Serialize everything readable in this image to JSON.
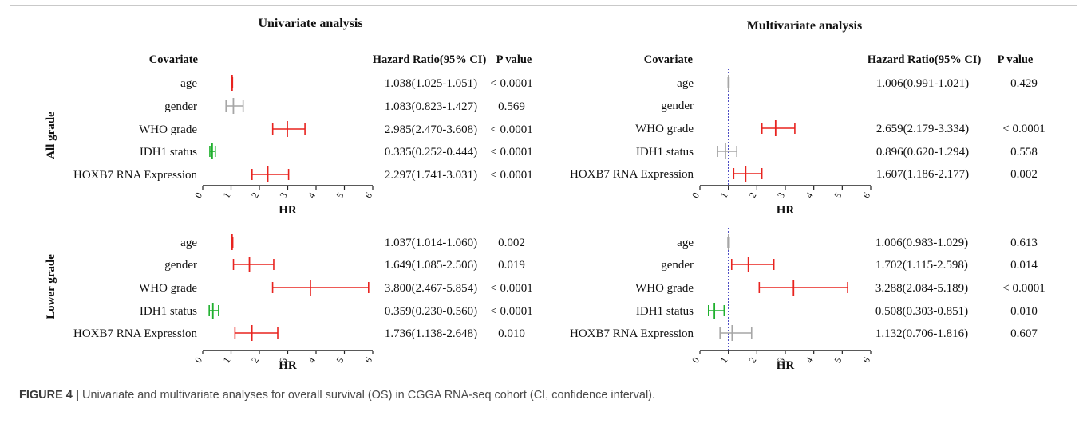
{
  "figure": {
    "label": "FIGURE 4 |",
    "caption": "Univariate and multivariate analyses for overall survival (OS) in CGGA RNA-seq cohort (CI, confidence interval)."
  },
  "headers": {
    "covariate": "Covariate",
    "hr_ci": "Hazard Ratio(95% CI)",
    "p_value": "P value"
  },
  "colors": {
    "significant": "#e8231f",
    "protective": "#1fb02e",
    "nonsignificant": "#a6a6a6",
    "reference": "#2b2bb8",
    "axis": "#222222"
  },
  "chart_data": [
    {
      "type": "forest",
      "title": "Univariate analysis",
      "group": "All grade",
      "xlabel": "HR",
      "xlim": [
        0,
        6
      ],
      "xticks": [
        "0",
        "1",
        "2",
        "3",
        "4",
        "5",
        "6"
      ],
      "reference": 1,
      "rows": [
        {
          "label": "age",
          "hr": 1.038,
          "lo": 1.025,
          "hi": 1.051,
          "ci": "1.038(1.025-1.051)",
          "p": "< 0.0001",
          "color": "significant"
        },
        {
          "label": "gender",
          "hr": 1.083,
          "lo": 0.823,
          "hi": 1.427,
          "ci": "1.083(0.823-1.427)",
          "p": "0.569",
          "color": "nonsignificant"
        },
        {
          "label": "WHO grade",
          "hr": 2.985,
          "lo": 2.47,
          "hi": 3.608,
          "ci": "2.985(2.470-3.608)",
          "p": "< 0.0001",
          "color": "significant"
        },
        {
          "label": "IDH1 status",
          "hr": 0.335,
          "lo": 0.252,
          "hi": 0.444,
          "ci": "0.335(0.252-0.444)",
          "p": "< 0.0001",
          "color": "protective"
        },
        {
          "label": "HOXB7 RNA Expression",
          "hr": 2.297,
          "lo": 1.741,
          "hi": 3.031,
          "ci": "2.297(1.741-3.031)",
          "p": "< 0.0001",
          "color": "significant"
        }
      ]
    },
    {
      "type": "forest",
      "title": "Multivariate analysis",
      "group": "All grade",
      "xlabel": "HR",
      "xlim": [
        0,
        6
      ],
      "xticks": [
        "0",
        "1",
        "2",
        "3",
        "4",
        "5",
        "6"
      ],
      "reference": 1,
      "rows": [
        {
          "label": "age",
          "hr": 1.006,
          "lo": 0.991,
          "hi": 1.021,
          "ci": "1.006(0.991-1.021)",
          "p": "0.429",
          "color": "nonsignificant"
        },
        {
          "label": "gender",
          "hr": null,
          "lo": null,
          "hi": null,
          "ci": "",
          "p": "",
          "color": "nonsignificant"
        },
        {
          "label": "WHO grade",
          "hr": 2.659,
          "lo": 2.179,
          "hi": 3.334,
          "ci": "2.659(2.179-3.334)",
          "p": "< 0.0001",
          "color": "significant"
        },
        {
          "label": "IDH1 status",
          "hr": 0.896,
          "lo": 0.62,
          "hi": 1.294,
          "ci": "0.896(0.620-1.294)",
          "p": "0.558",
          "color": "nonsignificant"
        },
        {
          "label": "HOXB7 RNA Expression",
          "hr": 1.607,
          "lo": 1.186,
          "hi": 2.177,
          "ci": "1.607(1.186-2.177)",
          "p": "0.002",
          "color": "significant"
        }
      ]
    },
    {
      "type": "forest",
      "title": "",
      "group": "Lower grade",
      "xlabel": "HR",
      "xlim": [
        0,
        6
      ],
      "xticks": [
        "0",
        "1",
        "2",
        "3",
        "4",
        "5",
        "6"
      ],
      "reference": 1,
      "rows": [
        {
          "label": "age",
          "hr": 1.037,
          "lo": 1.014,
          "hi": 1.06,
          "ci": "1.037(1.014-1.060)",
          "p": "0.002",
          "color": "significant"
        },
        {
          "label": "gender",
          "hr": 1.649,
          "lo": 1.085,
          "hi": 2.506,
          "ci": "1.649(1.085-2.506)",
          "p": "0.019",
          "color": "significant"
        },
        {
          "label": "WHO grade",
          "hr": 3.8,
          "lo": 2.467,
          "hi": 5.854,
          "ci": "3.800(2.467-5.854)",
          "p": "< 0.0001",
          "color": "significant"
        },
        {
          "label": "IDH1 status",
          "hr": 0.359,
          "lo": 0.23,
          "hi": 0.56,
          "ci": "0.359(0.230-0.560)",
          "p": "< 0.0001",
          "color": "protective"
        },
        {
          "label": "HOXB7 RNA Expression",
          "hr": 1.736,
          "lo": 1.138,
          "hi": 2.648,
          "ci": "1.736(1.138-2.648)",
          "p": "0.010",
          "color": "significant"
        }
      ]
    },
    {
      "type": "forest",
      "title": "",
      "group": "Lower grade",
      "xlabel": "HR",
      "xlim": [
        0,
        6
      ],
      "xticks": [
        "0",
        "1",
        "2",
        "3",
        "4",
        "5",
        "6"
      ],
      "reference": 1,
      "rows": [
        {
          "label": "age",
          "hr": 1.006,
          "lo": 0.983,
          "hi": 1.029,
          "ci": "1.006(0.983-1.029)",
          "p": "0.613",
          "color": "nonsignificant"
        },
        {
          "label": "gender",
          "hr": 1.702,
          "lo": 1.115,
          "hi": 2.598,
          "ci": "1.702(1.115-2.598)",
          "p": "0.014",
          "color": "significant"
        },
        {
          "label": "WHO grade",
          "hr": 3.288,
          "lo": 2.084,
          "hi": 5.189,
          "ci": "3.288(2.084-5.189)",
          "p": "< 0.0001",
          "color": "significant"
        },
        {
          "label": "IDH1 status",
          "hr": 0.508,
          "lo": 0.303,
          "hi": 0.851,
          "ci": "0.508(0.303-0.851)",
          "p": "0.010",
          "color": "protective"
        },
        {
          "label": "HOXB7 RNA Expression",
          "hr": 1.132,
          "lo": 0.706,
          "hi": 1.816,
          "ci": "1.132(0.706-1.816)",
          "p": "0.607",
          "color": "nonsignificant"
        }
      ]
    }
  ]
}
